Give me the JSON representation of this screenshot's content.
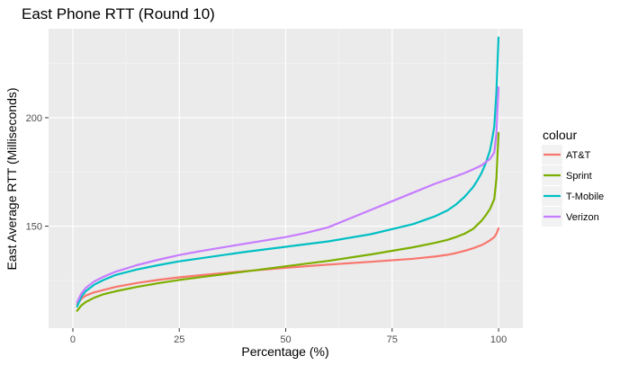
{
  "chart_data": {
    "type": "line",
    "title": "East Phone RTT (Round 10)",
    "xlabel": "Percentage (%)",
    "ylabel": "East Average RTT (Milliseconds)",
    "xlim": [
      -5.7,
      105.7
    ],
    "ylim": [
      103,
      241
    ],
    "x_ticks": [
      0,
      25,
      50,
      75,
      100
    ],
    "x_tick_labels": [
      "0",
      "25",
      "50",
      "75",
      "100"
    ],
    "y_ticks": [
      150,
      200
    ],
    "y_tick_labels": [
      "150",
      "200"
    ],
    "grid": true,
    "legend": {
      "title": "colour",
      "position": "right"
    },
    "colors": {
      "AT&T": "#F8766D",
      "Sprint": "#7CAE00",
      "T-Mobile": "#00BFC4",
      "Verizon": "#C77CFF"
    },
    "series": [
      {
        "name": "AT&T",
        "x": [
          1,
          2,
          3,
          5,
          7,
          10,
          15,
          20,
          25,
          30,
          40,
          50,
          60,
          70,
          80,
          85,
          88,
          90,
          92,
          94,
          96,
          97,
          98,
          99,
          99.5,
          100
        ],
        "y": [
          114,
          116.5,
          118,
          119.5,
          120.5,
          122,
          123.8,
          125.2,
          126.4,
          127.4,
          129.2,
          130.8,
          132.3,
          133.6,
          135,
          136,
          136.8,
          137.6,
          138.6,
          139.8,
          141.3,
          142.3,
          143.5,
          145,
          146.5,
          149
        ]
      },
      {
        "name": "Sprint",
        "x": [
          1,
          2,
          3,
          5,
          7,
          10,
          15,
          20,
          25,
          30,
          40,
          50,
          60,
          70,
          80,
          85,
          88,
          90,
          92,
          94,
          96,
          97,
          98,
          99,
          99.5,
          100
        ],
        "y": [
          111,
          113.5,
          115,
          117,
          118.5,
          120,
          122,
          123.7,
          125.2,
          126.5,
          129,
          131.5,
          134,
          137,
          140.3,
          142.3,
          143.7,
          145,
          146.5,
          148.7,
          152.5,
          155,
          158,
          162.5,
          172,
          193
        ]
      },
      {
        "name": "T-Mobile",
        "x": [
          1,
          2,
          3,
          5,
          7,
          10,
          15,
          20,
          25,
          30,
          40,
          50,
          60,
          70,
          80,
          85,
          88,
          90,
          92,
          94,
          95,
          96,
          97,
          98,
          98.5,
          99,
          99.5,
          100
        ],
        "y": [
          113,
          117.5,
          120,
          123,
          125,
          127.5,
          130,
          132,
          133.8,
          135.2,
          138,
          140.5,
          143,
          146.3,
          151,
          154.5,
          157.3,
          160,
          163.5,
          168,
          171,
          174.5,
          179,
          185,
          190,
          196,
          212,
          237
        ]
      },
      {
        "name": "Verizon",
        "x": [
          1,
          2,
          3,
          5,
          7,
          10,
          15,
          20,
          25,
          30,
          40,
          50,
          55,
          60,
          65,
          70,
          75,
          80,
          85,
          90,
          92,
          94,
          96,
          97,
          98,
          99,
          99.5,
          100
        ],
        "y": [
          115,
          119,
          121.5,
          124.5,
          126.5,
          129,
          132,
          134.5,
          136.7,
          138.5,
          141.8,
          145,
          147,
          149.5,
          153.5,
          157.5,
          161.5,
          165.5,
          169.5,
          173,
          174.5,
          176.2,
          178,
          179.5,
          181,
          184,
          193,
          214
        ]
      }
    ]
  }
}
